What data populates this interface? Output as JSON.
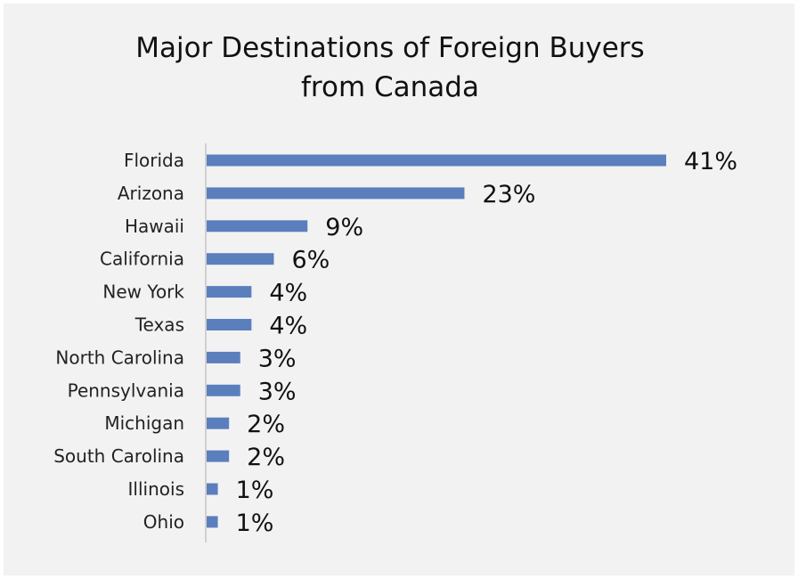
{
  "chart_data": {
    "type": "bar",
    "orientation": "horizontal",
    "title": "Major Destinations of Foreign Buyers from Canada",
    "title_lines": [
      "Major Destinations of Foreign Buyers",
      "from Canada"
    ],
    "categories": [
      "Florida",
      "Arizona",
      "Hawaii",
      "California",
      "New York",
      "Texas",
      "North Carolina",
      "Pennsylvania",
      "Michigan",
      "South Carolina",
      "Illinois",
      "Ohio"
    ],
    "values": [
      41,
      23,
      9,
      6,
      4,
      4,
      3,
      3,
      2,
      2,
      1,
      1
    ],
    "value_labels": [
      "41%",
      "23%",
      "9%",
      "6%",
      "4%",
      "4%",
      "3%",
      "3%",
      "2%",
      "2%",
      "1%",
      "1%"
    ],
    "unit": "%",
    "xlim": [
      0,
      41
    ],
    "grid": false,
    "legend": "none",
    "bar_color": "#5b7fbd",
    "background": "#f2f2f3"
  }
}
